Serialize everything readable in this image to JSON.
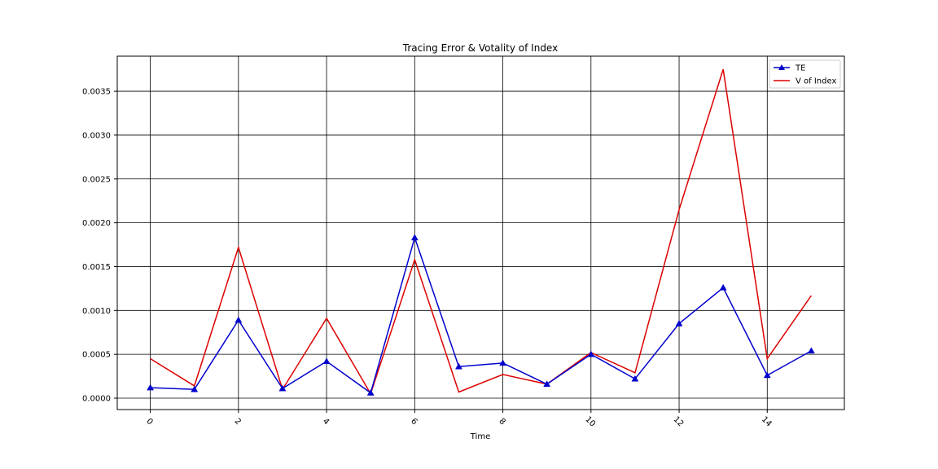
{
  "chart_data": {
    "type": "line",
    "title": "Tracing Error & Votality of Index",
    "xlabel": "Time",
    "ylabel": "",
    "x": [
      0,
      1,
      2,
      3,
      4,
      5,
      6,
      7,
      8,
      9,
      10,
      11,
      12,
      13,
      14,
      15
    ],
    "xlim": [
      -0.75,
      15.75
    ],
    "ylim": [
      -0.00013,
      0.0039
    ],
    "x_ticks": [
      "0",
      "2",
      "4",
      "6",
      "8",
      "10",
      "12",
      "14"
    ],
    "y_ticks": [
      "0.0000",
      "0.0005",
      "0.0010",
      "0.0015",
      "0.0020",
      "0.0025",
      "0.0030",
      "0.0035"
    ],
    "grid": true,
    "legend_position": "top-right",
    "series": [
      {
        "name": "TE",
        "color": "#0000cc",
        "marker": "triangle",
        "values": [
          0.00012,
          0.0001,
          0.00089,
          0.00011,
          0.00042,
          6e-05,
          0.00183,
          0.00036,
          0.0004,
          0.00016,
          0.0005,
          0.00022,
          0.00085,
          0.00126,
          0.00026,
          0.00054
        ]
      },
      {
        "name": "V of Index",
        "color": "#dd0000",
        "marker": "none",
        "values": [
          0.00045,
          0.00014,
          0.00172,
          0.0001,
          0.00091,
          5e-05,
          0.00158,
          7e-05,
          0.00027,
          0.00016,
          0.00052,
          0.00029,
          0.00215,
          0.00375,
          0.00045,
          0.00117
        ]
      }
    ]
  }
}
